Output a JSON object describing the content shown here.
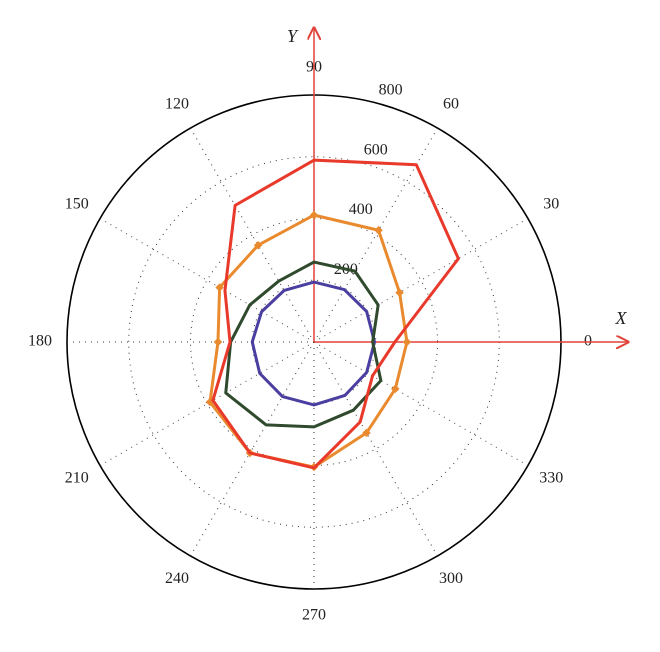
{
  "chart_data": {
    "type": "polar",
    "x_label": "X",
    "y_label": "Y",
    "theta": [
      0,
      30,
      60,
      90,
      120,
      150,
      180,
      210,
      240,
      270,
      300,
      330
    ],
    "thetaticks": [
      0,
      30,
      60,
      90,
      120,
      150,
      180,
      210,
      240,
      270,
      300,
      330
    ],
    "rlim": [
      0,
      800
    ],
    "rticks": [
      200,
      400,
      600,
      800
    ],
    "grid": true,
    "series": [
      {
        "color": "#4a3fa0",
        "values": [
          196,
          197,
          196,
          194,
          193,
          196,
          200,
          203,
          204,
          204,
          200,
          197
        ]
      },
      {
        "color": "#2f4a2c",
        "values": [
          190,
          240,
          265,
          259,
          228,
          240,
          270,
          330,
          310,
          275,
          255,
          250
        ]
      },
      {
        "color": "#ea8a2e",
        "markers": true,
        "values": [
          301,
          320,
          418,
          411,
          362,
          353,
          311,
          389,
          415,
          405,
          340,
          304
        ]
      },
      {
        "color": "#e8392a",
        "values": [
          262,
          540,
          663,
          589,
          511,
          333,
          272,
          378,
          415,
          408,
          299,
          219
        ]
      }
    ]
  }
}
